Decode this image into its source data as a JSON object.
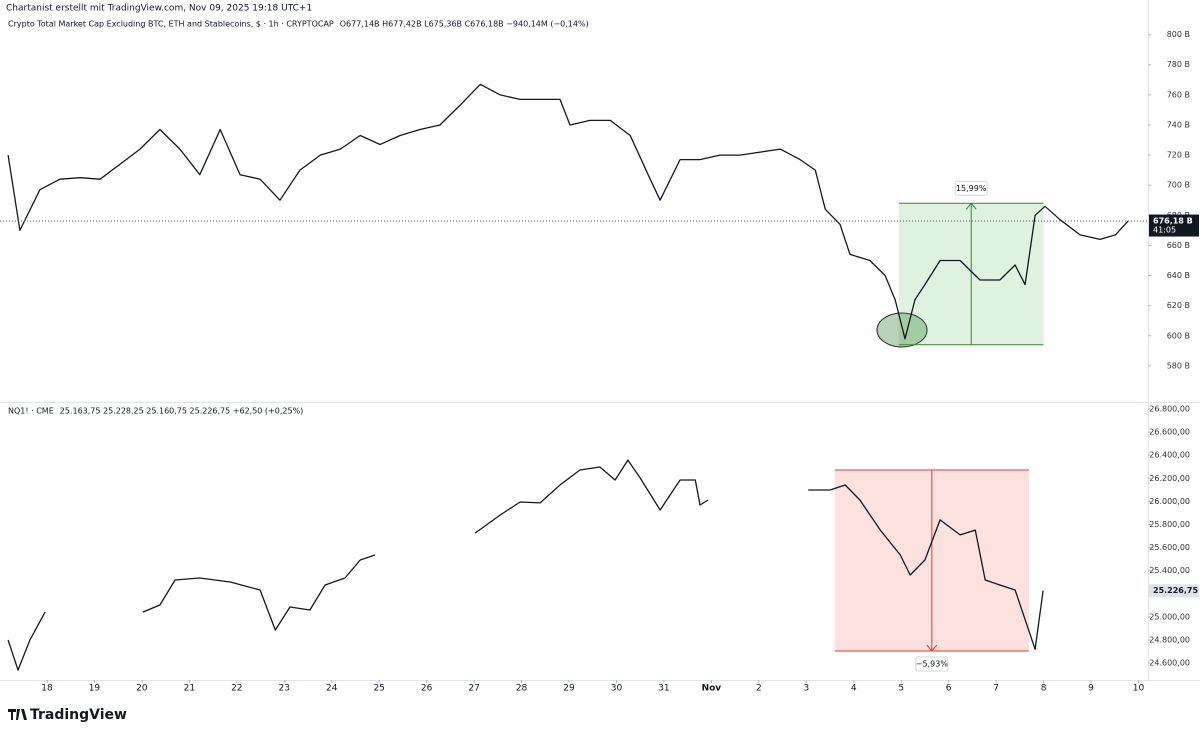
{
  "header": {
    "credit": "Chartanist erstellt mit TradingView.com, Nov 09, 2025 19:18 UTC+1"
  },
  "footer": {
    "brand": "TradingView"
  },
  "chart_data": [
    {
      "type": "line",
      "legend_text": "Crypto Total Market Cap Excluding BTC, ETH and Stablecoins, $ · 1h · CRYPTOCAP",
      "ohlc_text": "O677,14B  H677,42B  L675,36B  C676,18B  −940,14M (−0,14%)",
      "xlim": [
        17.01,
        41.2
      ],
      "ylim": [
        556,
        823
      ],
      "yticks": [
        {
          "value": 580,
          "label": "580 B"
        },
        {
          "value": 600,
          "label": "600 B"
        },
        {
          "value": 620,
          "label": "620 B"
        },
        {
          "value": 640,
          "label": "640 B"
        },
        {
          "value": 660,
          "label": "660 B"
        },
        {
          "value": 680,
          "label": "680 B"
        },
        {
          "value": 700,
          "label": "700 B"
        },
        {
          "value": 720,
          "label": "720 B"
        },
        {
          "value": 740,
          "label": "740 B"
        },
        {
          "value": 760,
          "label": "760 B"
        },
        {
          "value": 780,
          "label": "780 B"
        },
        {
          "value": 800,
          "label": "800 B"
        }
      ],
      "last": {
        "value": 676.18,
        "label": "676,18 B",
        "timer": "41:05"
      },
      "series": [
        {
          "color": "#131722",
          "x": [
            17.18,
            17.43,
            17.85,
            18.27,
            18.7,
            19.12,
            19.54,
            19.96,
            20.38,
            20.8,
            21.22,
            21.65,
            22.07,
            22.49,
            22.91,
            23.33,
            23.76,
            24.18,
            24.6,
            25.02,
            25.44,
            25.86,
            26.28,
            26.7,
            27.13,
            27.55,
            27.97,
            28.39,
            28.81,
            29.02,
            29.44,
            29.87,
            30.29,
            30.71,
            30.92,
            31.34,
            31.76,
            32.18,
            32.6,
            33.03,
            33.45,
            33.87,
            34.19,
            34.4,
            34.71,
            34.92,
            35.34,
            35.66,
            35.87,
            36.08,
            36.29,
            36.5,
            36.82,
            37.24,
            37.66,
            38.08,
            38.4,
            38.61,
            38.82,
            39.03,
            39.35,
            39.77,
            40.19,
            40.51,
            40.78
          ],
          "values": [
            720,
            670,
            697,
            704,
            705,
            704,
            714,
            724,
            737,
            724,
            707,
            737,
            707,
            704,
            690,
            710,
            720,
            724,
            733,
            727,
            733,
            737,
            740,
            753,
            767,
            760,
            757,
            757,
            757,
            740,
            743,
            743,
            733,
            704,
            690,
            717,
            717,
            720,
            720,
            722,
            724,
            717,
            710,
            684,
            674,
            654,
            650,
            640,
            624,
            598,
            624,
            634,
            650,
            650,
            637,
            637,
            647,
            634,
            680,
            686,
            677,
            667,
            664,
            667,
            676.18
          ]
        }
      ],
      "ranges": [
        {
          "x": [
            35.95,
            39.0
          ],
          "y": [
            594,
            688
          ],
          "label": "15,99%",
          "color": "#2e8b2e",
          "fill": "rgba(76,175,80,0.18)",
          "direction": "up"
        }
      ]
    },
    {
      "type": "line",
      "legend_text": "NQ1! · CME",
      "ohlc_text": "25.163,75  25.228,25  25.160,75  25.226,75  +62,50 (+0,25%)",
      "xlim": [
        17.01,
        41.2
      ],
      "ylim": [
        24454,
        26852
      ],
      "yticks": [
        {
          "value": 24600,
          "label": "24.600,00"
        },
        {
          "value": 24800,
          "label": "24.800,00"
        },
        {
          "value": 25000,
          "label": "25.000,00"
        },
        {
          "value": 25400,
          "label": "25.400,00"
        },
        {
          "value": 25600,
          "label": "25.600,00"
        },
        {
          "value": 25800,
          "label": "25.800,00"
        },
        {
          "value": 26000,
          "label": "26.000,00"
        },
        {
          "value": 26200,
          "label": "26.200,00"
        },
        {
          "value": 26400,
          "label": "26.400,00"
        },
        {
          "value": 26600,
          "label": "26.600,00"
        },
        {
          "value": 26800,
          "label": "26.800,00"
        }
      ],
      "xticks": [
        18,
        19,
        20,
        21,
        22,
        23,
        24,
        25,
        26,
        27,
        28,
        29,
        30,
        31,
        {
          "value": 32,
          "label": "Nov"
        },
        {
          "value": 33,
          "label": "2"
        },
        {
          "value": 34,
          "label": "3"
        },
        {
          "value": 35,
          "label": "4"
        },
        {
          "value": 36,
          "label": "5"
        },
        {
          "value": 37,
          "label": "6"
        },
        {
          "value": 38,
          "label": "7"
        },
        {
          "value": 39,
          "label": "8"
        },
        {
          "value": 40,
          "label": "9"
        },
        {
          "value": 41,
          "label": "10"
        }
      ],
      "last": {
        "value": 25226.75,
        "label": "25.226,75"
      },
      "series": [
        {
          "color": "#131722",
          "x": [
            17.18,
            17.39,
            17.64,
            17.96,
            null,
            20.02,
            20.38,
            20.7,
            21.22,
            21.86,
            22.49,
            22.81,
            23.12,
            23.54,
            23.86,
            24.28,
            24.6,
            24.91,
            null,
            27.02,
            27.55,
            27.97,
            28.39,
            28.81,
            29.23,
            29.65,
            29.97,
            30.24,
            30.5,
            30.92,
            31.34,
            31.66,
            31.76,
            31.93,
            null,
            34.04,
            34.5,
            34.82,
            35.13,
            35.56,
            35.98,
            36.19,
            36.5,
            36.82,
            37.24,
            37.56,
            37.77,
            38.08,
            38.4,
            38.72,
            38.82,
            38.99
          ],
          "values": [
            24800,
            24540,
            24800,
            25042,
            null,
            25042,
            25103,
            25320,
            25337,
            25302,
            25233,
            24887,
            25086,
            25060,
            25276,
            25337,
            25493,
            25536,
            null,
            25726,
            25882,
            25995,
            25987,
            26142,
            26272,
            26298,
            26185,
            26358,
            26203,
            25926,
            26185,
            26185,
            25969,
            26012,
            null,
            26099,
            26099,
            26142,
            26012,
            25752,
            25536,
            25363,
            25493,
            25840,
            25710,
            25752,
            25320,
            25276,
            25233,
            24844,
            24720,
            25226.75
          ]
        }
      ],
      "ranges": [
        {
          "x": [
            34.6,
            38.69
          ],
          "y": [
            24705,
            26272
          ],
          "label": "−5,93%",
          "color": "#e53935",
          "fill": "rgba(244,67,54,0.16)",
          "direction": "down"
        }
      ]
    }
  ]
}
